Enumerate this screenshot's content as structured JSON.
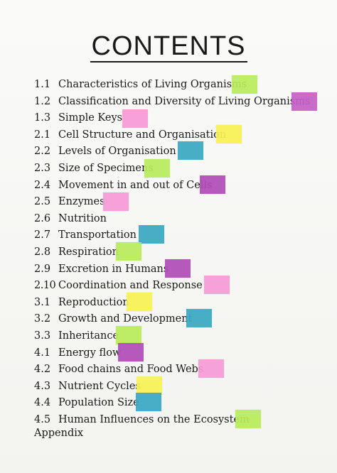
{
  "title": "CONTENTS",
  "colors": {
    "green": "#b9ec5a",
    "magenta": "#c560c6",
    "pink": "#f79ad6",
    "yellow": "#f8f254",
    "teal": "#3aa8c3",
    "purple": "#b14cb9"
  },
  "items": [
    {
      "num": "1.1",
      "label": "Characteristics of Living Organisms",
      "note": "green"
    },
    {
      "num": "1.2",
      "label": "Classification and Diversity of Living Organisms",
      "note": "magenta"
    },
    {
      "num": "1.3",
      "label": "Simple Keys",
      "note": "pink"
    },
    {
      "num": "2.1",
      "label": "Cell Structure and Organisation",
      "note": "yellow"
    },
    {
      "num": "2.2",
      "label": "Levels of Organisation",
      "note": "teal"
    },
    {
      "num": "2.3",
      "label": "Size of Specimens",
      "note": "green"
    },
    {
      "num": "2.4",
      "label": "Movement in and out of Cells",
      "note": "purple"
    },
    {
      "num": "2.5",
      "label": "Enzymes",
      "note": "pink"
    },
    {
      "num": "2.6",
      "label": "Nutrition",
      "note": ""
    },
    {
      "num": "2.7",
      "label": "Transportation",
      "note": "teal"
    },
    {
      "num": "2.8",
      "label": "Respiration",
      "note": "green"
    },
    {
      "num": "2.9",
      "label": "Excretion in Humans",
      "note": "purple"
    },
    {
      "num": "2.10",
      "label": "Coordination and Response",
      "note": "pink"
    },
    {
      "num": "3.1",
      "label": "Reproduction",
      "note": "yellow"
    },
    {
      "num": "3.2",
      "label": "Growth and Development",
      "note": "teal"
    },
    {
      "num": "3.3",
      "label": "Inheritance",
      "note": "green"
    },
    {
      "num": "4.1",
      "label": "Energy flow",
      "note": "purple"
    },
    {
      "num": "4.2",
      "label": "Food chains and Food Webs",
      "note": "pink"
    },
    {
      "num": "4.3",
      "label": "Nutrient Cycles",
      "note": "yellow"
    },
    {
      "num": "4.4",
      "label": "Population Size",
      "note": "teal"
    },
    {
      "num": "4.5",
      "label": "Human Influences on the Ecosystem",
      "note": "green"
    }
  ],
  "appendix": "Appendix"
}
